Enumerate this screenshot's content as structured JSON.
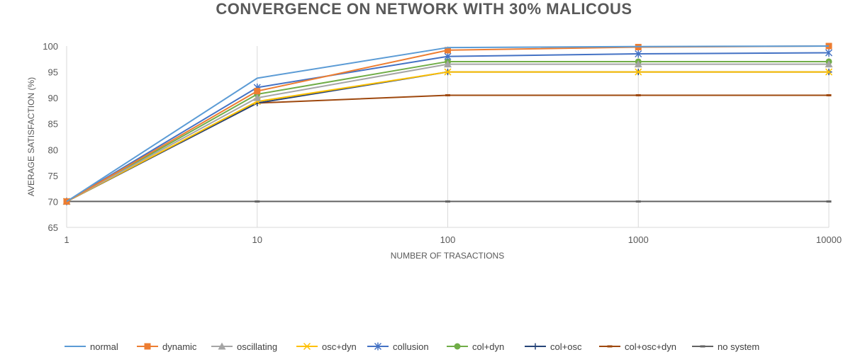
{
  "chart_data": {
    "type": "line",
    "title": "CONVERGENCE ON NETWORK WITH 30% MALICOUS",
    "xlabel": "NUMBER OF TRASACTIONS",
    "ylabel": "AVERAGE SATISFACTION (%)",
    "x": [
      "1",
      "10",
      "100",
      "1000",
      "10000"
    ],
    "x_scale": "log",
    "ylim": [
      65,
      100
    ],
    "yticks": [
      65,
      70,
      75,
      80,
      85,
      90,
      95,
      100
    ],
    "grid": "vertical",
    "legend": "bottom",
    "series": [
      {
        "name": "normal",
        "color": "#5b9bd5",
        "marker": "none",
        "values": [
          70,
          93.8,
          99.7,
          99.9,
          100
        ]
      },
      {
        "name": "dynamic",
        "color": "#ed7d31",
        "marker": "square",
        "values": [
          70,
          91.3,
          99.2,
          99.8,
          100
        ]
      },
      {
        "name": "oscillating",
        "color": "#a5a5a5",
        "marker": "triangle",
        "values": [
          70,
          90.0,
          96.5,
          96.5,
          96.5
        ]
      },
      {
        "name": "osc+dyn",
        "color": "#ffc000",
        "marker": "x",
        "values": [
          70,
          89.3,
          95.0,
          95.0,
          95.0
        ]
      },
      {
        "name": "collusion",
        "color": "#4472c4",
        "marker": "star",
        "values": [
          70,
          92.0,
          98.0,
          98.5,
          98.7
        ]
      },
      {
        "name": "col+dyn",
        "color": "#70ad47",
        "marker": "circle",
        "values": [
          70,
          90.7,
          97.0,
          97.0,
          97.0
        ]
      },
      {
        "name": "col+osc",
        "color": "#264478",
        "marker": "plus",
        "values": [
          70,
          89.0,
          95.0,
          95.0,
          95.0
        ]
      },
      {
        "name": "col+osc+dyn",
        "color": "#9e480e",
        "marker": "dash",
        "values": [
          70,
          89.0,
          90.5,
          90.5,
          90.5
        ]
      },
      {
        "name": "no system",
        "color": "#636363",
        "marker": "dash",
        "values": [
          70,
          70,
          70,
          70,
          70
        ]
      }
    ]
  }
}
